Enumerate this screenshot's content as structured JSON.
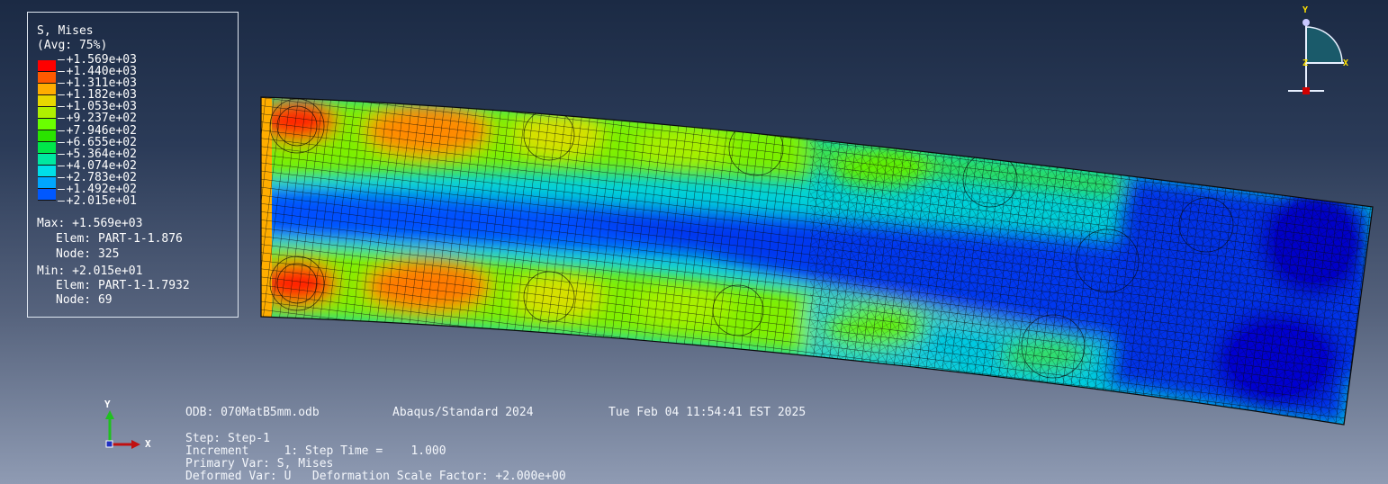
{
  "legend": {
    "title": "S, Mises",
    "avg": "(Avg: 75%)",
    "values": [
      "+1.569e+03",
      "+1.440e+03",
      "+1.311e+03",
      "+1.182e+03",
      "+1.053e+03",
      "+9.237e+02",
      "+7.946e+02",
      "+6.655e+02",
      "+5.364e+02",
      "+4.074e+02",
      "+2.783e+02",
      "+1.492e+02",
      "+2.015e+01"
    ],
    "colors": [
      "#ff0000",
      "#ff5a00",
      "#ffad00",
      "#e8d800",
      "#b0f000",
      "#6aff00",
      "#2ae300",
      "#00e64a",
      "#00e8a0",
      "#00dfe8",
      "#00a6ff",
      "#0058ff",
      "#0000ff"
    ],
    "max_line": "Max: +1.569e+03",
    "max_elem": "Elem: PART-1-1.876",
    "max_node": "Node: 325",
    "min_line": "Min: +2.015e+01",
    "min_elem": "Elem: PART-1-1.7932",
    "min_node": "Node: 69"
  },
  "info": {
    "odb": "ODB: 070MatB5mm.odb",
    "solver": "Abaqus/Standard 2024",
    "date": "Tue Feb 04 11:54:41 EST 2025",
    "step": "Step: Step-1",
    "increment": "Increment     1: Step Time =    1.000",
    "primary_var": "Primary Var: S, Mises",
    "deformed_var": "Deformed Var: U   Deformation Scale Factor: +2.000e+00"
  },
  "triad_view": {
    "y": "Y",
    "x": "X",
    "z": "Z"
  },
  "triad_global": {
    "y": "Y",
    "x": "X"
  },
  "colors": {
    "mesh_line": "#0a0a0a",
    "legend_border": "#dfe6f0"
  }
}
